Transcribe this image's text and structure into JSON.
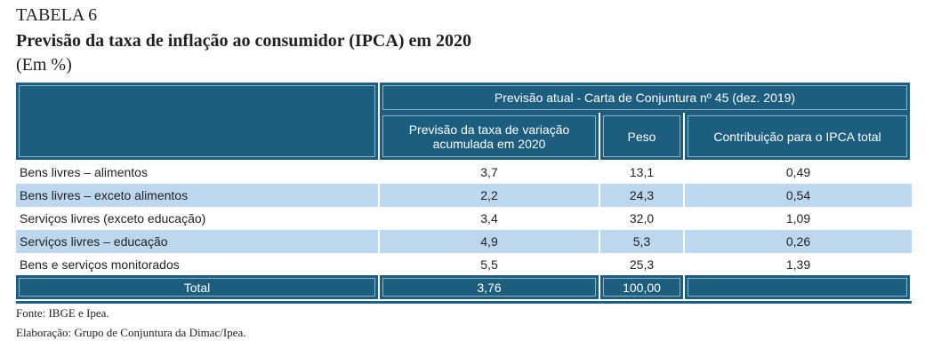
{
  "header": {
    "label": "TABELA 6",
    "title": "Previsão da taxa de inflação ao consumidor (IPCA) em 2020",
    "subtitle": "(Em %)"
  },
  "table": {
    "group_header": "Previsão atual - Carta de Conjuntura nº 45 (dez. 2019)",
    "columns": [
      "Previsão da taxa de variação acumulada em 2020",
      "Peso",
      "Contribuição para o IPCA total"
    ],
    "rows": [
      [
        "Bens livres – alimentos",
        "3,7",
        "13,1",
        "0,49"
      ],
      [
        "Bens livres – exceto alimentos",
        "2,2",
        "24,3",
        "0,54"
      ],
      [
        "Serviços livres (exceto educação)",
        "3,4",
        "32,0",
        "1,09"
      ],
      [
        "Serviços livres – educação",
        "4,9",
        "5,3",
        "0,26"
      ],
      [
        "Bens e serviços monitorados",
        "5,5",
        "25,3",
        "1,39"
      ]
    ],
    "total": [
      "Total",
      "3,76",
      "100,00"
    ]
  },
  "footer": {
    "source": "Fonte: IBGE e Ipea.",
    "elaboration": "Elaboração: Grupo de Conjuntura da Dimac/Ipea."
  }
}
